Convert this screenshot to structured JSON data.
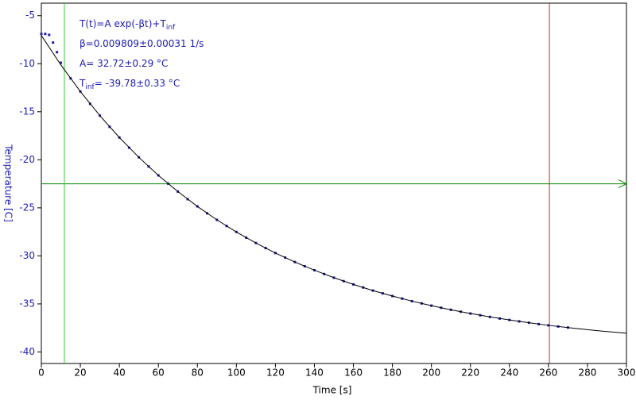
{
  "chart_data": {
    "type": "scatter",
    "xlabel": "Time [s]",
    "ylabel": "Temperature [C]",
    "xlim": [
      0,
      300
    ],
    "ylim": [
      -41.2,
      -3.7
    ],
    "xticks": [
      0,
      20,
      40,
      60,
      80,
      100,
      120,
      140,
      160,
      180,
      200,
      220,
      240,
      260,
      280,
      300
    ],
    "yticks": [
      -5,
      -10,
      -15,
      -20,
      -25,
      -30,
      -35,
      -40
    ],
    "series": [
      {
        "color": "#1c1cb4",
        "x": [
          0,
          2,
          4,
          6,
          8,
          10,
          15,
          20,
          25,
          30,
          35,
          40,
          45,
          50,
          55,
          60,
          65,
          70,
          75,
          80,
          85,
          90,
          95,
          100,
          105,
          110,
          115,
          120,
          125,
          130,
          135,
          140,
          145,
          150,
          155,
          160,
          165,
          170,
          175,
          180,
          185,
          190,
          195,
          200,
          205,
          210,
          215,
          220,
          225,
          230,
          235,
          240,
          245,
          250,
          255,
          260,
          265,
          270
        ],
        "values": [
          -6.9,
          -6.9,
          -7.0,
          -7.8,
          -8.8,
          -9.9,
          -11.53,
          -12.89,
          -14.18,
          -15.4,
          -16.57,
          -17.68,
          -18.74,
          -19.74,
          -20.7,
          -21.62,
          -22.48,
          -23.31,
          -24.1,
          -24.85,
          -25.57,
          -26.25,
          -26.89,
          -27.51,
          -28.1,
          -28.66,
          -29.19,
          -29.7,
          -30.18,
          -30.64,
          -31.08,
          -31.49,
          -31.89,
          -32.27,
          -32.63,
          -32.97,
          -33.29,
          -33.61,
          -33.9,
          -34.18,
          -34.45,
          -34.71,
          -34.95,
          -35.18,
          -35.4,
          -35.61,
          -35.81,
          -36.0,
          -36.18,
          -36.35,
          -36.52,
          -36.67,
          -36.82,
          -36.96,
          -37.1,
          -37.23,
          -37.35,
          -37.46
        ]
      },
      {
        "color": "#000000",
        "line": true,
        "x": [
          0,
          10,
          20,
          30,
          40,
          50,
          60,
          70,
          80,
          90,
          100,
          110,
          120,
          130,
          140,
          150,
          160,
          170,
          180,
          190,
          200,
          210,
          220,
          230,
          240,
          250,
          260,
          270,
          280,
          290,
          300
        ],
        "values": [
          -7.06,
          -10.12,
          -12.89,
          -15.4,
          -17.68,
          -19.74,
          -21.62,
          -23.31,
          -24.85,
          -26.25,
          -27.51,
          -28.66,
          -29.7,
          -30.64,
          -31.49,
          -32.27,
          -32.97,
          -33.61,
          -34.18,
          -34.71,
          -35.18,
          -35.61,
          -36.0,
          -36.35,
          -36.67,
          -36.96,
          -37.23,
          -37.46,
          -37.68,
          -37.88,
          -38.05
        ]
      }
    ],
    "vlines": [
      {
        "x": 11.8,
        "color": "#33cc33"
      },
      {
        "x": 260.5,
        "color": "#e02020"
      }
    ],
    "hlines": [
      {
        "y": -22.5,
        "color": "#008800"
      }
    ],
    "annotations": [
      [
        {
          "text": "T(t)=A exp(-βt)+T"
        },
        {
          "text": "inf",
          "sub": true
        }
      ],
      [
        {
          "text": "β=0.009809±0.00031 1/s"
        }
      ],
      [
        {
          "text": "A= 32.72±0.29 °C"
        }
      ],
      [
        {
          "text": "T"
        },
        {
          "text": "inf",
          "sub": true
        },
        {
          "text": "= -39.78±0.33 °C"
        }
      ]
    ]
  }
}
